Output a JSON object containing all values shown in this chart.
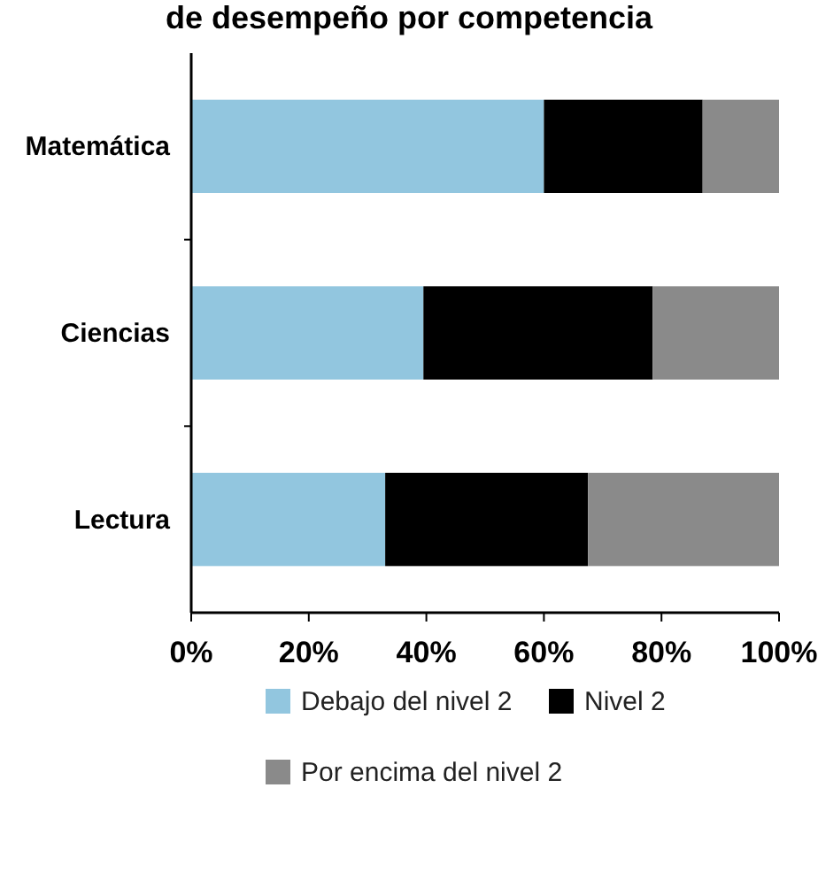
{
  "chart_data": {
    "type": "bar",
    "orientation": "horizontal",
    "stacked": true,
    "title": "de desempeño por competencia",
    "categories": [
      "Matemática",
      "Ciencias",
      "Lectura"
    ],
    "series": [
      {
        "name": "Debajo del nivel 2",
        "color": "#92c6df",
        "values": [
          60,
          39.5,
          33
        ]
      },
      {
        "name": "Nivel 2",
        "color": "#000000",
        "values": [
          27,
          39,
          34.5
        ]
      },
      {
        "name": "Por encima del nivel 2",
        "color": "#8a8a8a",
        "values": [
          13,
          21.5,
          32.5
        ]
      }
    ],
    "xlim": [
      0,
      100
    ],
    "xticks": [
      {
        "value": 0,
        "label": "0%"
      },
      {
        "value": 20,
        "label": "20%"
      },
      {
        "value": 40,
        "label": "40%"
      },
      {
        "value": 60,
        "label": "60%"
      },
      {
        "value": 80,
        "label": "80%"
      },
      {
        "value": 100,
        "label": "100%"
      }
    ],
    "grid": false,
    "legend": "bottom"
  }
}
